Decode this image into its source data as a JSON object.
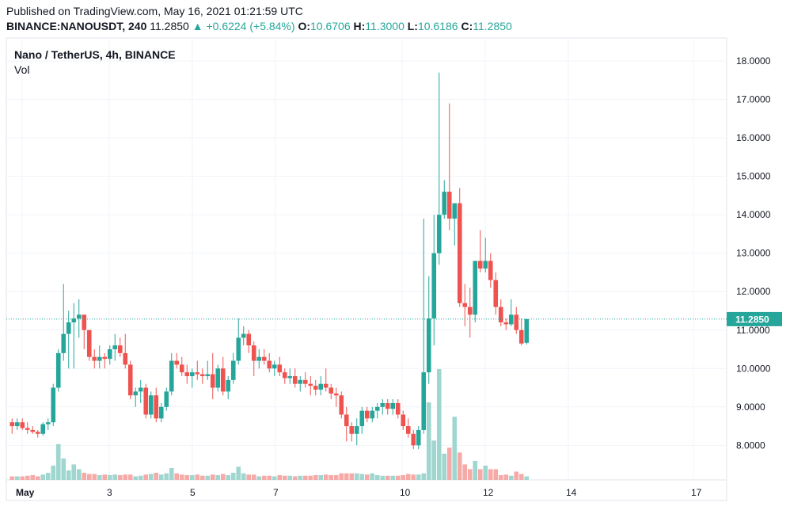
{
  "header": {
    "published": "Published on TradingView.com, May 16, 2021 01:21:59 UTC",
    "symbol": "BINANCE:NANOUSDT, 240",
    "last": "11.2850",
    "change": "▲ +0.6224 (+5.84%)",
    "o_label": "O:",
    "o_value": "10.6706",
    "h_label": "H:",
    "h_value": "11.3000",
    "l_label": "L:",
    "l_value": "10.6186",
    "c_label": "C:",
    "c_value": "11.2850"
  },
  "legend": {
    "title": "Nano / TetherUS, 4h, BINANCE",
    "vol": "Vol"
  },
  "colors": {
    "up": "#26a69a",
    "down": "#ef5350",
    "vol_up": "#9fd6cf",
    "vol_down": "#f5aaa8",
    "grid": "#f0f3fa",
    "axis_text": "#131722",
    "price_tag": "#26a69a"
  },
  "chart_data": {
    "type": "candlestick",
    "title": "Nano / TetherUS, 4h, BINANCE",
    "ylim": [
      7.1,
      18.6
    ],
    "y_ticks": [
      "8.0000",
      "9.0000",
      "10.0000",
      "11.0000",
      "12.0000",
      "13.0000",
      "14.0000",
      "15.0000",
      "16.0000",
      "17.0000",
      "18.0000"
    ],
    "x_ticks": [
      "May",
      "3",
      "5",
      "7",
      "10",
      "12",
      "14",
      "17"
    ],
    "last_price": "11.2850",
    "grid": true,
    "legend": "top-left",
    "candles": [
      [
        8.6,
        8.7,
        8.3,
        8.5
      ],
      [
        8.5,
        8.7,
        8.4,
        8.6
      ],
      [
        8.6,
        8.7,
        8.4,
        8.45
      ],
      [
        8.45,
        8.6,
        8.3,
        8.4
      ],
      [
        8.4,
        8.5,
        8.3,
        8.35
      ],
      [
        8.35,
        8.4,
        8.2,
        8.3
      ],
      [
        8.3,
        8.6,
        8.25,
        8.55
      ],
      [
        8.55,
        8.7,
        8.4,
        8.6
      ],
      [
        8.6,
        9.6,
        8.5,
        9.5
      ],
      [
        9.5,
        10.5,
        9.4,
        10.4
      ],
      [
        10.4,
        12.2,
        10.2,
        10.9
      ],
      [
        10.9,
        11.5,
        10.0,
        11.2
      ],
      [
        11.2,
        11.7,
        10.0,
        11.3
      ],
      [
        11.3,
        11.8,
        10.8,
        11.4
      ],
      [
        11.4,
        11.4,
        10.5,
        11.0
      ],
      [
        11.0,
        11.0,
        10.2,
        10.3
      ],
      [
        10.3,
        10.5,
        10.0,
        10.2
      ],
      [
        10.2,
        10.6,
        10.0,
        10.3
      ],
      [
        10.3,
        10.4,
        10.0,
        10.25
      ],
      [
        10.25,
        10.6,
        10.1,
        10.5
      ],
      [
        10.5,
        10.9,
        10.2,
        10.6
      ],
      [
        10.6,
        10.8,
        10.3,
        10.4
      ],
      [
        10.4,
        10.9,
        10.0,
        10.1
      ],
      [
        10.1,
        10.2,
        9.2,
        9.3
      ],
      [
        9.3,
        9.5,
        9.0,
        9.4
      ],
      [
        9.4,
        9.7,
        9.1,
        9.5
      ],
      [
        9.5,
        9.6,
        8.7,
        8.8
      ],
      [
        8.8,
        9.4,
        8.7,
        9.3
      ],
      [
        9.3,
        9.5,
        8.6,
        8.7
      ],
      [
        8.7,
        9.1,
        8.6,
        9.0
      ],
      [
        9.0,
        9.5,
        8.9,
        9.4
      ],
      [
        9.4,
        10.4,
        9.3,
        10.2
      ],
      [
        10.2,
        10.4,
        10.0,
        10.1
      ],
      [
        10.1,
        10.3,
        9.8,
        9.9
      ],
      [
        9.9,
        10.1,
        9.6,
        9.8
      ],
      [
        9.8,
        10.0,
        9.5,
        9.9
      ],
      [
        9.9,
        10.2,
        9.7,
        9.85
      ],
      [
        9.85,
        10.0,
        9.6,
        9.8
      ],
      [
        9.8,
        10.2,
        9.7,
        9.85
      ],
      [
        9.85,
        10.4,
        9.2,
        9.5
      ],
      [
        9.5,
        10.1,
        9.4,
        10.0
      ],
      [
        10.0,
        10.3,
        9.3,
        9.4
      ],
      [
        9.4,
        9.8,
        9.2,
        9.7
      ],
      [
        9.7,
        10.4,
        9.6,
        10.2
      ],
      [
        10.2,
        11.3,
        10.1,
        10.8
      ],
      [
        10.8,
        11.1,
        10.6,
        10.9
      ],
      [
        10.9,
        11.0,
        10.4,
        10.6
      ],
      [
        10.6,
        10.7,
        9.8,
        10.2
      ],
      [
        10.2,
        10.5,
        10.0,
        10.3
      ],
      [
        10.3,
        10.5,
        10.1,
        10.2
      ],
      [
        10.2,
        10.4,
        9.9,
        10.0
      ],
      [
        10.0,
        10.2,
        9.8,
        10.1
      ],
      [
        10.1,
        10.3,
        9.8,
        9.9
      ],
      [
        9.9,
        10.0,
        9.6,
        9.75
      ],
      [
        9.75,
        10.0,
        9.6,
        9.8
      ],
      [
        9.8,
        10.0,
        9.5,
        9.6
      ],
      [
        9.6,
        9.8,
        9.4,
        9.7
      ],
      [
        9.7,
        9.9,
        9.5,
        9.6
      ],
      [
        9.6,
        9.8,
        9.3,
        9.55
      ],
      [
        9.55,
        9.7,
        9.3,
        9.45
      ],
      [
        9.45,
        9.8,
        9.3,
        9.6
      ],
      [
        9.6,
        10.0,
        9.4,
        9.5
      ],
      [
        9.5,
        9.6,
        9.2,
        9.35
      ],
      [
        9.35,
        9.5,
        9.0,
        9.3
      ],
      [
        9.3,
        9.4,
        8.7,
        8.8
      ],
      [
        8.8,
        9.0,
        8.1,
        8.5
      ],
      [
        8.5,
        8.6,
        8.1,
        8.3
      ],
      [
        8.3,
        8.7,
        8.0,
        8.5
      ],
      [
        8.5,
        9.0,
        8.3,
        8.9
      ],
      [
        8.9,
        9.0,
        8.6,
        8.7
      ],
      [
        8.7,
        9.0,
        8.6,
        8.9
      ],
      [
        8.9,
        9.1,
        8.7,
        9.0
      ],
      [
        9.0,
        9.2,
        8.8,
        9.1
      ],
      [
        9.1,
        9.2,
        8.8,
        8.95
      ],
      [
        8.95,
        9.2,
        8.8,
        9.1
      ],
      [
        9.1,
        9.2,
        8.7,
        8.8
      ],
      [
        8.8,
        8.9,
        8.4,
        8.5
      ],
      [
        8.5,
        8.7,
        8.2,
        8.3
      ],
      [
        8.3,
        8.4,
        7.9,
        8.0
      ],
      [
        8.0,
        8.5,
        7.9,
        8.4
      ],
      [
        8.4,
        13.9,
        8.3,
        9.9
      ],
      [
        9.9,
        12.4,
        9.6,
        11.3
      ],
      [
        11.3,
        14.0,
        10.6,
        13.0
      ],
      [
        13.0,
        17.7,
        12.7,
        14.0
      ],
      [
        14.0,
        14.9,
        13.9,
        14.6
      ],
      [
        14.6,
        16.9,
        13.6,
        13.9
      ],
      [
        13.9,
        14.2,
        13.2,
        14.3
      ],
      [
        14.3,
        14.7,
        11.6,
        11.7
      ],
      [
        11.7,
        12.2,
        11.1,
        11.6
      ],
      [
        11.6,
        12.1,
        10.8,
        11.4
      ],
      [
        11.4,
        12.8,
        11.2,
        12.8
      ],
      [
        12.8,
        13.6,
        12.5,
        12.6
      ],
      [
        12.6,
        13.4,
        12.5,
        12.8
      ],
      [
        12.8,
        13.0,
        12.1,
        12.3
      ],
      [
        12.3,
        12.5,
        11.4,
        11.6
      ],
      [
        11.6,
        11.8,
        11.1,
        11.2
      ],
      [
        11.2,
        11.3,
        11.0,
        11.15
      ],
      [
        11.15,
        11.8,
        11.1,
        11.4
      ],
      [
        11.4,
        11.6,
        10.9,
        11.0
      ],
      [
        11.0,
        11.3,
        10.6,
        10.65
      ],
      [
        10.67,
        11.3,
        10.62,
        11.285
      ]
    ],
    "volume": [
      0.3,
      0.3,
      0.3,
      0.35,
      0.4,
      0.3,
      0.45,
      0.6,
      1.2,
      3.0,
      1.8,
      0.8,
      1.3,
      0.9,
      0.6,
      0.5,
      0.5,
      0.4,
      0.45,
      0.4,
      0.45,
      0.4,
      0.45,
      0.45,
      0.3,
      0.35,
      0.45,
      0.5,
      0.6,
      0.45,
      0.55,
      1.0,
      0.55,
      0.45,
      0.4,
      0.4,
      0.45,
      0.35,
      0.35,
      0.45,
      0.4,
      0.5,
      0.4,
      0.6,
      1.1,
      0.55,
      0.45,
      0.45,
      0.3,
      0.35,
      0.35,
      0.3,
      0.4,
      0.35,
      0.35,
      0.3,
      0.35,
      0.35,
      0.35,
      0.4,
      0.4,
      0.45,
      0.4,
      0.4,
      0.55,
      0.55,
      0.55,
      0.55,
      0.5,
      0.45,
      0.55,
      0.4,
      0.35,
      0.35,
      0.35,
      0.35,
      0.4,
      0.5,
      0.45,
      0.45,
      0.55,
      6.5,
      3.3,
      9.3,
      2.2,
      2.7,
      5.3,
      2.3,
      1.3,
      0.9,
      1.6,
      0.9,
      1.2,
      0.9,
      0.9,
      0.4,
      0.45,
      0.35,
      0.7,
      0.5,
      0.3
    ]
  }
}
